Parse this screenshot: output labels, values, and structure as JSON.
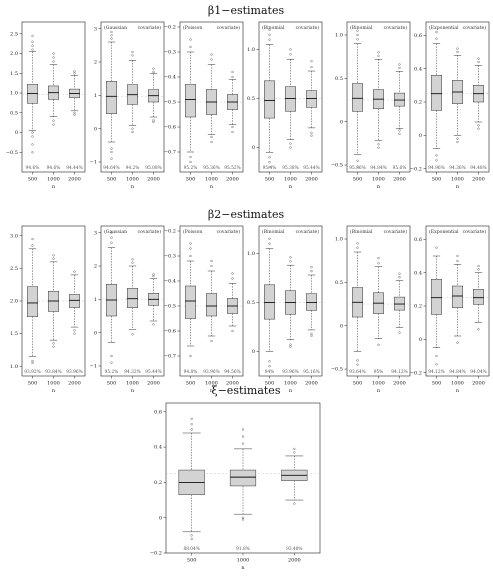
{
  "rows": [
    {
      "title": "β1−estimates",
      "panels": [
        {
          "header": [],
          "ylim": [
            -1.0,
            2.8
          ],
          "ticks": [
            -0.5,
            0,
            0.5,
            1.0,
            1.5,
            2.0,
            2.5
          ],
          "tick_labels": [
            "−0.5",
            "0",
            "0.5",
            "1.0",
            "1.5",
            "2.0",
            "2.5"
          ],
          "true_value": 0.97,
          "boxes": [
            {
              "x": "500",
              "min": 0.05,
              "q1": 0.74,
              "median": 0.99,
              "q3": 1.22,
              "max": 2.05,
              "pct": "94.6%",
              "outliers": [
                -0.5,
                -0.3,
                -0.1,
                0.0,
                2.1,
                2.2,
                2.3,
                2.45
              ]
            },
            {
              "x": "1000",
              "min": 0.4,
              "q1": 0.84,
              "median": 1.01,
              "q3": 1.18,
              "max": 1.72,
              "pct": "94.6%",
              "outliers": [
                0.3,
                0.2,
                1.8,
                1.9,
                2.0
              ]
            },
            {
              "x": "2000",
              "min": 0.55,
              "q1": 0.88,
              "median": 0.99,
              "q3": 1.1,
              "max": 1.45,
              "pct": "94.44%",
              "outliers": [
                0.45,
                0.5,
                1.5,
                1.55
              ]
            }
          ]
        },
        {
          "header": [
            "(Gaussian",
            "covariate)"
          ],
          "ylim": [
            -1.3,
            3.2
          ],
          "ticks": [
            -1,
            0,
            1,
            2,
            3
          ],
          "tick_labels": [
            "−1",
            "0",
            "1",
            "2",
            "3"
          ],
          "true_value": 0.97,
          "boxes": [
            {
              "x": "500",
              "min": -0.4,
              "q1": 0.45,
              "median": 0.97,
              "q3": 1.42,
              "max": 2.6,
              "pct": "94.64%",
              "outliers": [
                -0.9,
                -0.7,
                -0.6,
                2.7,
                2.8,
                2.9
              ]
            },
            {
              "x": "1000",
              "min": 0.1,
              "q1": 0.73,
              "median": 1.02,
              "q3": 1.32,
              "max": 2.05,
              "pct": "94.2%",
              "outliers": [
                -0.1,
                0.0,
                2.2,
                2.3
              ]
            },
            {
              "x": "2000",
              "min": 0.35,
              "q1": 0.8,
              "median": 0.99,
              "q3": 1.17,
              "max": 1.65,
              "pct": "95.08%",
              "outliers": [
                0.2,
                0.25,
                1.7,
                1.8
              ]
            }
          ]
        },
        {
          "header": [
            "(Poisson",
            "covariate)"
          ],
          "ylim": [
            -0.78,
            -0.18
          ],
          "ticks": [
            -0.7,
            -0.6,
            -0.5,
            -0.4,
            -0.3,
            -0.2
          ],
          "tick_labels": [
            "−0.7",
            "−0.6",
            "−0.5",
            "−0.4",
            "−0.3",
            "−0.2"
          ],
          "true_value": -0.5,
          "boxes": [
            {
              "x": "500",
              "min": -0.7,
              "q1": -0.56,
              "median": -0.49,
              "q3": -0.43,
              "max": -0.3,
              "pct": "95.2%",
              "outliers": [
                -0.74,
                -0.72,
                -0.28,
                -0.25
              ]
            },
            {
              "x": "1000",
              "min": -0.63,
              "q1": -0.55,
              "median": -0.5,
              "q3": -0.45,
              "max": -0.35,
              "pct": "95.36%",
              "outliers": [
                -0.66,
                -0.64,
                -0.33,
                -0.31
              ]
            },
            {
              "x": "2000",
              "min": -0.59,
              "q1": -0.53,
              "median": -0.5,
              "q3": -0.47,
              "max": -0.41,
              "pct": "95.52%",
              "outliers": [
                -0.62,
                -0.6,
                -0.4,
                -0.38
              ]
            }
          ]
        },
        {
          "header": [
            "(Binomial",
            "covariate)"
          ],
          "ylim": [
            -0.25,
            1.28
          ],
          "ticks": [
            0,
            0.5,
            1.0
          ],
          "tick_labels": [
            "0",
            "0.5",
            "1.0"
          ],
          "true_value": 0.5,
          "boxes": [
            {
              "x": "500",
              "min": -0.05,
              "q1": 0.3,
              "median": 0.48,
              "q3": 0.68,
              "max": 1.05,
              "pct": "95.4%",
              "outliers": [
                -0.2,
                -0.15,
                -0.1,
                1.1,
                1.15,
                1.2
              ]
            },
            {
              "x": "1000",
              "min": 0.08,
              "q1": 0.37,
              "median": 0.5,
              "q3": 0.62,
              "max": 0.9,
              "pct": "95.38%",
              "outliers": [
                0.0,
                0.04,
                0.95,
                1.0
              ]
            },
            {
              "x": "2000",
              "min": 0.2,
              "q1": 0.41,
              "median": 0.5,
              "q3": 0.58,
              "max": 0.78,
              "pct": "95.44%",
              "outliers": [
                0.12,
                0.15,
                0.82,
                0.88
              ]
            }
          ]
        },
        {
          "header": [
            "(Binomial",
            "covariate)"
          ],
          "ylim": [
            -0.58,
            1.15
          ],
          "ticks": [
            -0.5,
            0,
            0.5,
            1.0
          ],
          "tick_labels": [
            "−0.5",
            "0",
            "0.5",
            "1.0"
          ],
          "true_value": 0.25,
          "boxes": [
            {
              "x": "500",
              "min": -0.38,
              "q1": 0.12,
              "median": 0.27,
              "q3": 0.44,
              "max": 0.9,
              "pct": "95.36%",
              "outliers": [
                -0.52,
                -0.45,
                0.95,
                1.0,
                1.05
              ]
            },
            {
              "x": "1000",
              "min": -0.22,
              "q1": 0.15,
              "median": 0.26,
              "q3": 0.37,
              "max": 0.72,
              "pct": "94.84%",
              "outliers": [
                -0.3,
                -0.26,
                0.76,
                0.8
              ]
            },
            {
              "x": "2000",
              "min": -0.08,
              "q1": 0.18,
              "median": 0.25,
              "q3": 0.33,
              "max": 0.58,
              "pct": "95.6%",
              "outliers": [
                -0.14,
                -0.1,
                0.62,
                0.66
              ]
            }
          ]
        },
        {
          "header": [
            "(Exponential",
            "covariate)"
          ],
          "ylim": [
            -0.22,
            0.68
          ],
          "ticks": [
            -0.2,
            0,
            0.2,
            0.4,
            0.6
          ],
          "tick_labels": [
            "−0.2",
            "0",
            "0.2",
            "0.4",
            "0.6"
          ],
          "true_value": 0.25,
          "boxes": [
            {
              "x": "500",
              "min": -0.08,
              "q1": 0.15,
              "median": 0.25,
              "q3": 0.36,
              "max": 0.55,
              "pct": "94.96%",
              "outliers": [
                -0.15,
                -0.12,
                0.58,
                0.62
              ]
            },
            {
              "x": "1000",
              "min": 0.0,
              "q1": 0.19,
              "median": 0.26,
              "q3": 0.33,
              "max": 0.48,
              "pct": "94.36%",
              "outliers": [
                -0.04,
                -0.02,
                0.5,
                0.52
              ]
            },
            {
              "x": "2000",
              "min": 0.08,
              "q1": 0.2,
              "median": 0.25,
              "q3": 0.3,
              "max": 0.42,
              "pct": "94.48%",
              "outliers": [
                0.04,
                0.06,
                0.44,
                0.46
              ]
            }
          ]
        }
      ]
    },
    {
      "title": "β2−estimates",
      "panels": [
        {
          "header": [],
          "ylim": [
            0.85,
            3.15
          ],
          "ticks": [
            1.0,
            1.5,
            2.0,
            2.5,
            3.0
          ],
          "tick_labels": [
            "1.0",
            "1.5",
            "2.0",
            "2.5",
            "3.0"
          ],
          "true_value": 2.0,
          "boxes": [
            {
              "x": "500",
              "min": 1.15,
              "q1": 1.76,
              "median": 1.97,
              "q3": 2.22,
              "max": 2.8,
              "pct": "93.92%",
              "outliers": [
                1.05,
                1.08,
                2.85,
                2.95
              ]
            },
            {
              "x": "1000",
              "min": 1.4,
              "q1": 1.84,
              "median": 2.0,
              "q3": 2.15,
              "max": 2.6,
              "pct": "93.84%",
              "outliers": [
                1.3,
                1.35,
                2.65,
                2.7
              ]
            },
            {
              "x": "2000",
              "min": 1.6,
              "q1": 1.9,
              "median": 2.01,
              "q3": 2.1,
              "max": 2.4,
              "pct": "93.96%",
              "outliers": [
                1.5,
                1.55,
                2.45
              ]
            }
          ]
        },
        {
          "header": [
            "(Gaussian",
            "covariate)"
          ],
          "ylim": [
            -1.3,
            3.2
          ],
          "ticks": [
            -1,
            0,
            1,
            2,
            3
          ],
          "tick_labels": [
            "−1",
            "0",
            "1",
            "2",
            "3"
          ],
          "true_value": 1.0,
          "boxes": [
            {
              "x": "500",
              "min": -0.3,
              "q1": 0.5,
              "median": 0.98,
              "q3": 1.45,
              "max": 2.55,
              "pct": "95.2%",
              "outliers": [
                -0.9,
                -0.7,
                2.7,
                2.85,
                3.0
              ]
            },
            {
              "x": "1000",
              "min": 0.1,
              "q1": 0.75,
              "median": 1.02,
              "q3": 1.33,
              "max": 2.0,
              "pct": "94.32%",
              "outliers": [
                -0.05,
                2.1,
                2.2
              ]
            },
            {
              "x": "2000",
              "min": 0.35,
              "q1": 0.82,
              "median": 1.0,
              "q3": 1.18,
              "max": 1.62,
              "pct": "95.44%",
              "outliers": [
                0.25,
                1.7,
                1.75
              ]
            }
          ]
        },
        {
          "header": [
            "(Poisson",
            "covariate)"
          ],
          "ylim": [
            -0.78,
            -0.18
          ],
          "ticks": [
            -0.7,
            -0.6,
            -0.5,
            -0.4,
            -0.3,
            -0.2
          ],
          "tick_labels": [
            "−0.7",
            "−0.6",
            "−0.5",
            "−0.4",
            "−0.3",
            "−0.2"
          ],
          "true_value": -0.5,
          "boxes": [
            {
              "x": "500",
              "min": -0.66,
              "q1": -0.55,
              "median": -0.48,
              "q3": -0.42,
              "max": -0.32,
              "pct": "94.8%",
              "outliers": [
                -0.7,
                -0.3,
                -0.27,
                -0.25
              ]
            },
            {
              "x": "1000",
              "min": -0.62,
              "q1": -0.54,
              "median": -0.5,
              "q3": -0.45,
              "max": -0.36,
              "pct": "93.96%",
              "outliers": [
                -0.64,
                -0.34,
                -0.32
              ]
            },
            {
              "x": "2000",
              "min": -0.58,
              "q1": -0.53,
              "median": -0.5,
              "q3": -0.47,
              "max": -0.41,
              "pct": "94.56%",
              "outliers": [
                -0.6,
                -0.39,
                -0.37
              ]
            }
          ]
        },
        {
          "header": [
            "(Binomial",
            "covariate)"
          ],
          "ylim": [
            -0.25,
            1.28
          ],
          "ticks": [
            0,
            0.5,
            1.0
          ],
          "tick_labels": [
            "0",
            "0.5",
            "1.0"
          ],
          "true_value": 0.5,
          "boxes": [
            {
              "x": "500",
              "min": 0.0,
              "q1": 0.33,
              "median": 0.5,
              "q3": 0.68,
              "max": 1.05,
              "pct": "94%",
              "outliers": [
                -0.15,
                -0.1,
                1.1,
                1.15
              ]
            },
            {
              "x": "1000",
              "min": 0.12,
              "q1": 0.38,
              "median": 0.5,
              "q3": 0.62,
              "max": 0.88,
              "pct": "93.96%",
              "outliers": [
                0.05,
                0.07,
                0.92,
                0.96
              ]
            },
            {
              "x": "2000",
              "min": 0.22,
              "q1": 0.42,
              "median": 0.5,
              "q3": 0.59,
              "max": 0.78,
              "pct": "95.16%",
              "outliers": [
                0.16,
                0.18,
                0.82,
                0.86
              ]
            }
          ]
        },
        {
          "header": [
            "(Binomial",
            "covariate)"
          ],
          "ylim": [
            -0.58,
            1.15
          ],
          "ticks": [
            -0.5,
            0,
            0.5,
            1.0
          ],
          "tick_labels": [
            "−0.5",
            "0",
            "0.5",
            "1.0"
          ],
          "true_value": 0.25,
          "boxes": [
            {
              "x": "500",
              "min": -0.3,
              "q1": 0.1,
              "median": 0.27,
              "q3": 0.44,
              "max": 0.85,
              "pct": "93.64%",
              "outliers": [
                -0.45,
                -0.4,
                0.9,
                0.95
              ]
            },
            {
              "x": "1000",
              "min": -0.15,
              "q1": 0.14,
              "median": 0.26,
              "q3": 0.38,
              "max": 0.68,
              "pct": "95%",
              "outliers": [
                -0.22,
                0.72,
                0.78
              ]
            },
            {
              "x": "2000",
              "min": -0.02,
              "q1": 0.18,
              "median": 0.25,
              "q3": 0.33,
              "max": 0.52,
              "pct": "94.12%",
              "outliers": [
                -0.08,
                0.56,
                0.6
              ]
            }
          ]
        },
        {
          "header": [
            "(Exponential",
            "covariate)"
          ],
          "ylim": [
            -0.22,
            0.68
          ],
          "ticks": [
            -0.2,
            0,
            0.2,
            0.4,
            0.6
          ],
          "tick_labels": [
            "−0.2",
            "0",
            "0.2",
            "0.4",
            "0.6"
          ],
          "true_value": 0.25,
          "boxes": [
            {
              "x": "500",
              "min": -0.05,
              "q1": 0.15,
              "median": 0.25,
              "q3": 0.36,
              "max": 0.5,
              "pct": "94.12%",
              "outliers": [
                -0.15,
                -0.1,
                0.55
              ]
            },
            {
              "x": "1000",
              "min": 0.02,
              "q1": 0.19,
              "median": 0.26,
              "q3": 0.32,
              "max": 0.45,
              "pct": "94.84%",
              "outliers": [
                -0.02,
                0.47,
                0.5
              ]
            },
            {
              "x": "2000",
              "min": 0.1,
              "q1": 0.21,
              "median": 0.25,
              "q3": 0.3,
              "max": 0.4,
              "pct": "94.04%",
              "outliers": [
                0.06,
                0.42,
                0.44
              ]
            }
          ]
        }
      ]
    }
  ],
  "chart_data": {
    "type": "box",
    "title": "ξ−estimates",
    "xlabel": "n",
    "categories": [
      "500",
      "1000",
      "2000"
    ],
    "ylim": [
      -0.2,
      0.65
    ],
    "ticks": [
      -0.2,
      0,
      0.2,
      0.4,
      0.6
    ],
    "tick_labels": [
      "−0.2",
      "0",
      "0.2",
      "0.4",
      "0.6"
    ],
    "true_value": 0.25,
    "boxes": [
      {
        "x": "500",
        "min": -0.08,
        "q1": 0.13,
        "median": 0.2,
        "q3": 0.27,
        "max": 0.48,
        "pct": "88.04%",
        "outliers": [
          -0.12,
          -0.1,
          0.5,
          0.53,
          0.56
        ]
      },
      {
        "x": "1000",
        "min": 0.02,
        "q1": 0.18,
        "median": 0.23,
        "q3": 0.27,
        "max": 0.39,
        "pct": "91.8%",
        "outliers": [
          -0.01,
          0.0,
          0.42,
          0.46,
          0.5
        ]
      },
      {
        "x": "2000",
        "min": 0.1,
        "q1": 0.21,
        "median": 0.24,
        "q3": 0.27,
        "max": 0.35,
        "pct": "93.48%",
        "outliers": [
          0.08,
          0.37,
          0.39
        ]
      }
    ]
  }
}
